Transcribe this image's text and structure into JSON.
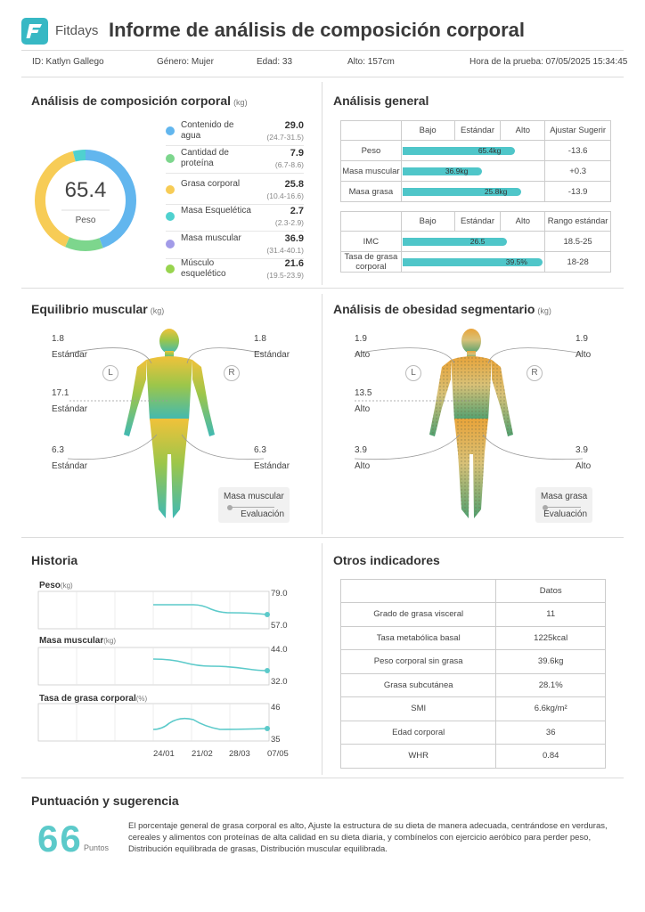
{
  "header": {
    "brand": "Fitdays",
    "title": "Informe de análisis de composición corporal"
  },
  "info": {
    "id": "ID: Katlyn Gallego",
    "gender": "Género: Mujer",
    "age": "Edad: 33",
    "height": "Alto: 157cm",
    "test_time": "Hora de la prueba: 07/05/2025 15:34:45"
  },
  "composition": {
    "title": "Análisis de composición corporal",
    "unit": "(kg)",
    "center_value": "65.4",
    "center_label": "Peso",
    "ring_colors": {
      "water": "#62b6ee",
      "protein": "#7dd68d",
      "fat": "#f7cc56",
      "bone": "#4fd1cf"
    },
    "items": [
      {
        "name": "Contenido de agua",
        "value": "29.0",
        "range": "(24.7-31.5)",
        "color": "#62b6ee"
      },
      {
        "name": "Cantidad de proteína",
        "value": "7.9",
        "range": "(6.7-8.6)",
        "color": "#7dd68d"
      },
      {
        "name": "Grasa corporal",
        "value": "25.8",
        "range": "(10.4-16.6)",
        "color": "#f7cc56"
      },
      {
        "name": "Masa Esquelética",
        "value": "2.7",
        "range": "(2.3-2.9)",
        "color": "#4fd1cf"
      },
      {
        "name": "Masa muscular",
        "value": "36.9",
        "range": "(31.4-40.1)",
        "color": "#a29be8"
      },
      {
        "name": "Músculo esquelético",
        "value": "21.6",
        "range": "(19.5-23.9)",
        "color": "#98d44e"
      }
    ]
  },
  "general": {
    "title": "Análisis general",
    "table1": {
      "headers": [
        "Bajo",
        "Estándar",
        "Alto",
        "Ajustar Sugerir"
      ],
      "rows": [
        {
          "name": "Peso",
          "bar_label": "65.4kg",
          "level": 0.78,
          "value": "-13.6"
        },
        {
          "name": "Masa muscular",
          "bar_label": "36.9kg",
          "level": 0.55,
          "value": "+0.3"
        },
        {
          "name": "Masa grasa",
          "bar_label": "25.8kg",
          "level": 0.82,
          "value": "-13.9"
        }
      ]
    },
    "table2": {
      "headers": [
        "Bajo",
        "Estándar",
        "Alto",
        "Rango estándar"
      ],
      "rows": [
        {
          "name": "IMC",
          "bar_label": "26.5",
          "level": 0.72,
          "value": "18.5-25"
        },
        {
          "name": "Tasa de grasa corporal",
          "bar_label": "39.5%",
          "level": 0.97,
          "value": "18-28"
        }
      ]
    }
  },
  "muscle": {
    "title": "Equilibrio muscular",
    "unit": "(kg)",
    "left_arm": {
      "value": "1.8",
      "eval": "Estándar"
    },
    "right_arm": {
      "value": "1.8",
      "eval": "Estándar"
    },
    "trunk": {
      "value": "17.1",
      "eval": "Estándar"
    },
    "left_leg": {
      "value": "6.3",
      "eval": "Estándar"
    },
    "right_leg": {
      "value": "6.3",
      "eval": "Estándar"
    },
    "side_left": "L",
    "side_right": "R",
    "legend_top": "Masa muscular",
    "legend_bottom": "Evaluación"
  },
  "obesity": {
    "title": "Análisis de obesidad segmentario",
    "unit": "(kg)",
    "left_arm": {
      "value": "1.9",
      "eval": "Alto"
    },
    "right_arm": {
      "value": "1.9",
      "eval": "Alto"
    },
    "trunk": {
      "value": "13.5",
      "eval": "Alto"
    },
    "left_leg": {
      "value": "3.9",
      "eval": "Alto"
    },
    "right_leg": {
      "value": "3.9",
      "eval": "Alto"
    },
    "side_left": "L",
    "side_right": "R",
    "legend_top": "Masa grasa",
    "legend_bottom": "Evaluación"
  },
  "history": {
    "title": "Historia",
    "dates": [
      "24/01",
      "21/02",
      "28/03",
      "07/05"
    ],
    "charts": [
      {
        "name": "Peso",
        "unit": "(kg)",
        "max": "79.0",
        "min": "57.0"
      },
      {
        "name": "Masa muscular",
        "unit": "(kg)",
        "max": "44.0",
        "min": "32.0"
      },
      {
        "name": "Tasa de grasa corporal",
        "unit": "(%)",
        "max": "46",
        "min": "35"
      }
    ]
  },
  "other": {
    "title": "Otros indicadores",
    "header": "Datos",
    "rows": [
      {
        "name": "Grado de grasa visceral",
        "value": "11"
      },
      {
        "name": "Tasa metabólica basal",
        "value": "1225kcal"
      },
      {
        "name": "Peso corporal sin grasa",
        "value": "39.6kg"
      },
      {
        "name": "Grasa subcutánea",
        "value": "28.1%"
      },
      {
        "name": "SMI",
        "value": "6.6kg/m²"
      },
      {
        "name": "Edad corporal",
        "value": "36"
      },
      {
        "name": "WHR",
        "value": "0.84"
      }
    ]
  },
  "score": {
    "title": "Puntuación y sugerencia",
    "value": "66",
    "unit": "Puntos",
    "text": "El porcentaje general de grasa corporal es alto, Ajuste la estructura de su dieta de manera adecuada, centrándose en verduras, cereales y alimentos con proteínas de alta calidad en su dieta diaria, y combínelos con ejercicio aeróbico para perder peso, Distribución equilibrada de grasas, Distribución muscular equilibrada."
  }
}
